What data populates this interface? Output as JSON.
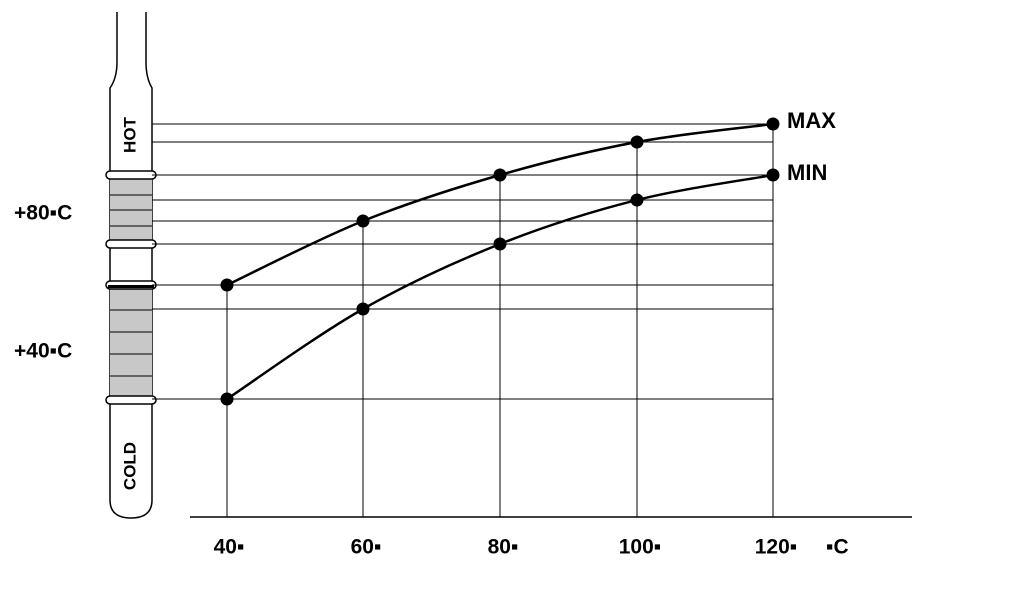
{
  "gauge": {
    "hot": "HOT",
    "cold": "COLD",
    "upper_range": "+80▪C",
    "lower_range": "+40▪C"
  },
  "x_axis": {
    "ticks": [
      "40▪",
      "60▪",
      "80▪",
      "100▪",
      "120▪"
    ],
    "unit": "▪C"
  },
  "curves": {
    "max": "MAX",
    "min": "MIN"
  }
}
